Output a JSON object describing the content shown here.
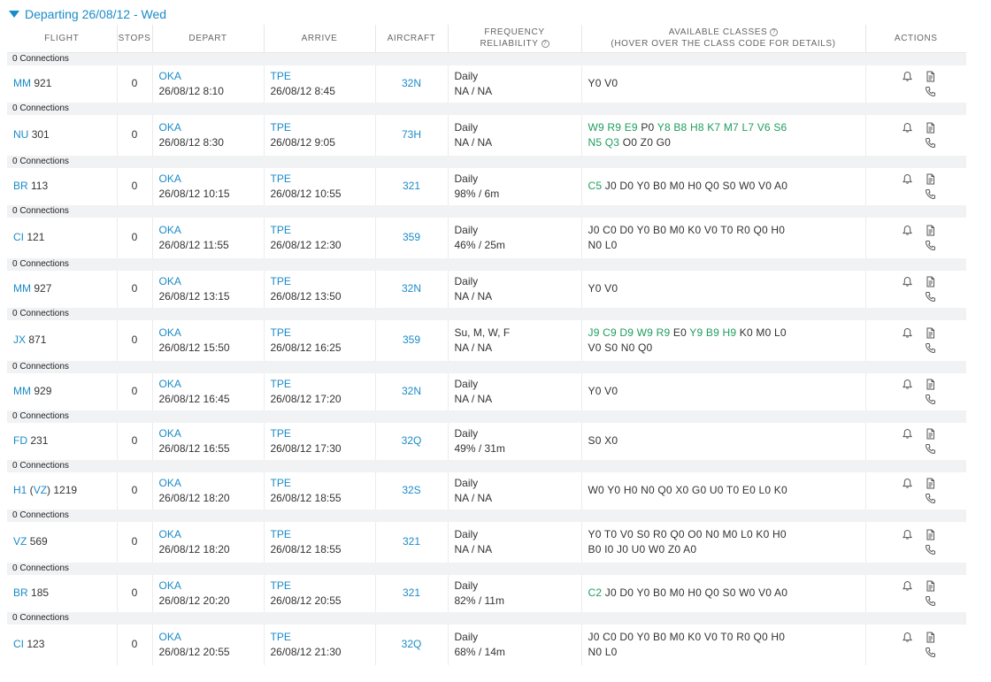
{
  "header": {
    "title": "Departing 26/08/12 - Wed"
  },
  "columns": {
    "flight": "FLIGHT",
    "stops": "STOPS",
    "depart": "DEPART",
    "arrive": "ARRIVE",
    "aircraft": "AIRCRAFT",
    "frequency_line1": "FREQUENCY",
    "frequency_line2": "RELIABILITY",
    "classes_line1": "AVAILABLE CLASSES",
    "classes_line2": "(HOVER OVER THE CLASS CODE FOR DETAILS)",
    "actions": "ACTIONS"
  },
  "flights": [
    {
      "connections": "0 Connections",
      "code": "MM",
      "num": "921",
      "stops": "0",
      "dep_airport": "OKA",
      "dep_time": "26/08/12 8:10",
      "arr_airport": "TPE",
      "arr_time": "26/08/12 8:45",
      "aircraft": "32N",
      "frequency": "Daily",
      "reliability": "NA / NA",
      "class_lines": [
        [
          {
            "t": "Y0 V0",
            "g": false
          }
        ]
      ]
    },
    {
      "connections": "0 Connections",
      "code": "NU",
      "num": "301",
      "stops": "0",
      "dep_airport": "OKA",
      "dep_time": "26/08/12 8:30",
      "arr_airport": "TPE",
      "arr_time": "26/08/12 9:05",
      "aircraft": "73H",
      "frequency": "Daily",
      "reliability": "NA / NA",
      "class_lines": [
        [
          {
            "t": "W9 R9 E9",
            "g": true
          },
          {
            "t": " P0 ",
            "g": false
          },
          {
            "t": "Y8 B8 H8 K7 M7 L7 V6 S6",
            "g": true
          }
        ],
        [
          {
            "t": "N5 Q3",
            "g": true
          },
          {
            "t": " O0 Z0 G0",
            "g": false
          }
        ]
      ]
    },
    {
      "connections": "0 Connections",
      "code": "BR",
      "num": "113",
      "stops": "0",
      "dep_airport": "OKA",
      "dep_time": "26/08/12 10:15",
      "arr_airport": "TPE",
      "arr_time": "26/08/12 10:55",
      "aircraft": "321",
      "frequency": "Daily",
      "reliability": "98% / 6m",
      "class_lines": [
        [
          {
            "t": "C5",
            "g": true
          },
          {
            "t": " J0 D0 Y0 B0 M0 H0 Q0 S0 W0 V0 A0",
            "g": false
          }
        ]
      ]
    },
    {
      "connections": "0 Connections",
      "code": "CI",
      "num": "121",
      "stops": "0",
      "dep_airport": "OKA",
      "dep_time": "26/08/12 11:55",
      "arr_airport": "TPE",
      "arr_time": "26/08/12 12:30",
      "aircraft": "359",
      "frequency": "Daily",
      "reliability": "46% / 25m",
      "class_lines": [
        [
          {
            "t": "J0 C0 D0 Y0 B0 M0 K0 V0 T0 R0 Q0 H0",
            "g": false
          }
        ],
        [
          {
            "t": "N0 L0",
            "g": false
          }
        ]
      ]
    },
    {
      "connections": "0 Connections",
      "code": "MM",
      "num": "927",
      "stops": "0",
      "dep_airport": "OKA",
      "dep_time": "26/08/12 13:15",
      "arr_airport": "TPE",
      "arr_time": "26/08/12 13:50",
      "aircraft": "32N",
      "frequency": "Daily",
      "reliability": "NA / NA",
      "class_lines": [
        [
          {
            "t": "Y0 V0",
            "g": false
          }
        ]
      ]
    },
    {
      "connections": "0 Connections",
      "code": "JX",
      "num": "871",
      "stops": "0",
      "dep_airport": "OKA",
      "dep_time": "26/08/12 15:50",
      "arr_airport": "TPE",
      "arr_time": "26/08/12 16:25",
      "aircraft": "359",
      "frequency": "Su, M, W, F",
      "reliability": "NA / NA",
      "class_lines": [
        [
          {
            "t": "J9 C9 D9 W9 R9",
            "g": true
          },
          {
            "t": " E0 ",
            "g": false
          },
          {
            "t": "Y9 B9 H9",
            "g": true
          },
          {
            "t": " K0 M0 L0",
            "g": false
          }
        ],
        [
          {
            "t": "V0 S0 N0 Q0",
            "g": false
          }
        ]
      ]
    },
    {
      "connections": "0 Connections",
      "code": "MM",
      "num": "929",
      "stops": "0",
      "dep_airport": "OKA",
      "dep_time": "26/08/12 16:45",
      "arr_airport": "TPE",
      "arr_time": "26/08/12 17:20",
      "aircraft": "32N",
      "frequency": "Daily",
      "reliability": "NA / NA",
      "class_lines": [
        [
          {
            "t": "Y0 V0",
            "g": false
          }
        ]
      ]
    },
    {
      "connections": "0 Connections",
      "code": "FD",
      "num": "231",
      "stops": "0",
      "dep_airport": "OKA",
      "dep_time": "26/08/12 16:55",
      "arr_airport": "TPE",
      "arr_time": "26/08/12 17:30",
      "aircraft": "32Q",
      "frequency": "Daily",
      "reliability": "49% / 31m",
      "class_lines": [
        [
          {
            "t": "S0 X0",
            "g": false
          }
        ]
      ]
    },
    {
      "connections": "0 Connections",
      "code": "H1",
      "code2": "VZ",
      "num": "1219",
      "stops": "0",
      "dep_airport": "OKA",
      "dep_time": "26/08/12 18:20",
      "arr_airport": "TPE",
      "arr_time": "26/08/12 18:55",
      "aircraft": "32S",
      "frequency": "Daily",
      "reliability": "NA / NA",
      "class_lines": [
        [
          {
            "t": "W0 Y0 H0 N0 Q0 X0 G0 U0 T0 E0 L0 K0",
            "g": false
          }
        ]
      ]
    },
    {
      "connections": "0 Connections",
      "code": "VZ",
      "num": "569",
      "stops": "0",
      "dep_airport": "OKA",
      "dep_time": "26/08/12 18:20",
      "arr_airport": "TPE",
      "arr_time": "26/08/12 18:55",
      "aircraft": "321",
      "frequency": "Daily",
      "reliability": "NA / NA",
      "class_lines": [
        [
          {
            "t": "Y0 T0 V0 S0 R0 Q0 O0 N0 M0 L0 K0 H0",
            "g": false
          }
        ],
        [
          {
            "t": "B0 I0 J0 U0 W0 Z0 A0",
            "g": false
          }
        ]
      ]
    },
    {
      "connections": "0 Connections",
      "code": "BR",
      "num": "185",
      "stops": "0",
      "dep_airport": "OKA",
      "dep_time": "26/08/12 20:20",
      "arr_airport": "TPE",
      "arr_time": "26/08/12 20:55",
      "aircraft": "321",
      "frequency": "Daily",
      "reliability": "82% / 11m",
      "class_lines": [
        [
          {
            "t": "C2",
            "g": true
          },
          {
            "t": " J0 D0 Y0 B0 M0 H0 Q0 S0 W0 V0 A0",
            "g": false
          }
        ]
      ]
    },
    {
      "connections": "0 Connections",
      "code": "CI",
      "num": "123",
      "stops": "0",
      "dep_airport": "OKA",
      "dep_time": "26/08/12 20:55",
      "arr_airport": "TPE",
      "arr_time": "26/08/12 21:30",
      "aircraft": "32Q",
      "frequency": "Daily",
      "reliability": "68% / 14m",
      "class_lines": [
        [
          {
            "t": "J0 C0 D0 Y0 B0 M0 K0 V0 T0 R0 Q0 H0",
            "g": false
          }
        ],
        [
          {
            "t": "N0 L0",
            "g": false
          }
        ]
      ]
    }
  ],
  "colors": {
    "link": "#1a8bc8",
    "available": "#1e9e5e",
    "connection_bar": "#f1f2f4"
  },
  "icons": {
    "expand": "triangle-down-icon",
    "alert": "bell-icon",
    "details": "document-icon",
    "contact": "phone-icon",
    "info": "info-circle-icon"
  }
}
